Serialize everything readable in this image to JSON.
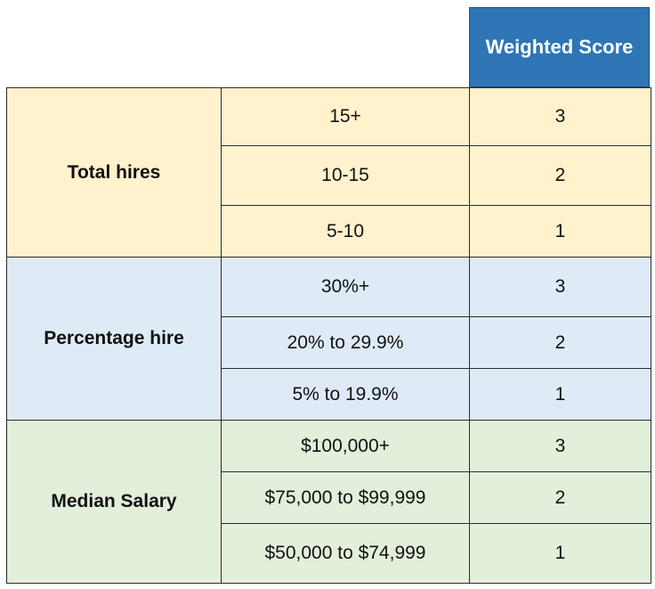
{
  "header": {
    "weighted_score_label": "Weighted Score",
    "color": "#2e75b6"
  },
  "groups": [
    {
      "category": "Total hires",
      "color": "#fff2cc",
      "rows": [
        {
          "range": "15+",
          "score": "3"
        },
        {
          "range": "10-15",
          "score": "2"
        },
        {
          "range": "5-10",
          "score": "1"
        }
      ]
    },
    {
      "category": "Percentage hire",
      "color": "#deebf7",
      "rows": [
        {
          "range": "30%+",
          "score": "3"
        },
        {
          "range": "20% to 29.9%",
          "score": "2"
        },
        {
          "range": "5% to 19.9%",
          "score": "1"
        }
      ]
    },
    {
      "category": "Median Salary",
      "color": "#e2efda",
      "rows": [
        {
          "range": "$100,000+",
          "score": "3"
        },
        {
          "range": "$75,000 to $99,999",
          "score": "2"
        },
        {
          "range": "$50,000 to $74,999",
          "score": "1"
        }
      ]
    }
  ]
}
